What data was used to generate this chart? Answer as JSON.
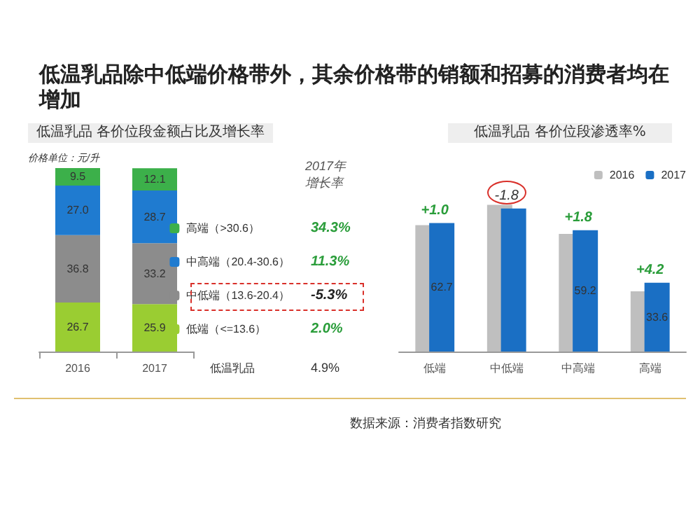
{
  "chart_data": [
    {
      "type": "bar",
      "stacked": true,
      "title": "低温乳品除中低端价格带外，其余价格带的销额和招募的消费者均在增加",
      "subtitle": "低温乳品 各价位段金额占比及增长率",
      "categories": [
        "2016",
        "2017"
      ],
      "series": [
        {
          "name": "低端（<=13.6）",
          "color": "#9acd32",
          "values": [
            26.7,
            25.9
          ],
          "value_labels": [
            "26.7",
            "25.9"
          ]
        },
        {
          "name": "中低端（13.6-20.4）",
          "color": "#8c8c8c",
          "values": [
            36.8,
            33.2
          ],
          "value_labels": [
            "36.8",
            "33.2"
          ]
        },
        {
          "name": "中高端（20.4-30.6）",
          "color": "#1f7bd0",
          "values": [
            27.0,
            28.7
          ],
          "value_labels": [
            "27.0",
            "28.7"
          ]
        },
        {
          "name": "高端（>30.6）",
          "color": "#3cb04a",
          "values": [
            9.5,
            12.1
          ],
          "value_labels": [
            "9.5",
            "12.1"
          ]
        }
      ],
      "legend": "right",
      "annotations": [
        "价格单位：元/升",
        "2017年",
        "增长率",
        "34.3%",
        "11.3%",
        "-5.3%",
        "2.0%",
        "低温乳品",
        "4.9%"
      ]
    },
    {
      "type": "bar",
      "title": "低温乳品 各价位段渗透率%",
      "categories": [
        "低端",
        "中低端",
        "中高端",
        "高端"
      ],
      "series": [
        {
          "name": "2016",
          "color": "#bfbfbf",
          "values": [
            61.7,
            71.6,
            57.4,
            29.4
          ]
        },
        {
          "name": "2017",
          "color": "#1a6fc4",
          "values": [
            62.7,
            69.8,
            59.2,
            33.6
          ],
          "value_labels": [
            "62.7",
            null,
            "59.2",
            "33.6"
          ]
        }
      ],
      "legend": "top right",
      "annotations": [
        {
          "text": "+1.0",
          "x": "低端",
          "y": 62.7
        },
        {
          "text": "-1.8",
          "x": "中低端",
          "y": 69.8
        },
        {
          "text": "+1.8",
          "x": "中高端",
          "y": 59.2
        },
        {
          "text": "+4.2",
          "x": "高端",
          "y": 33.6
        },
        "数据来源：消费者指数研究"
      ]
    }
  ]
}
